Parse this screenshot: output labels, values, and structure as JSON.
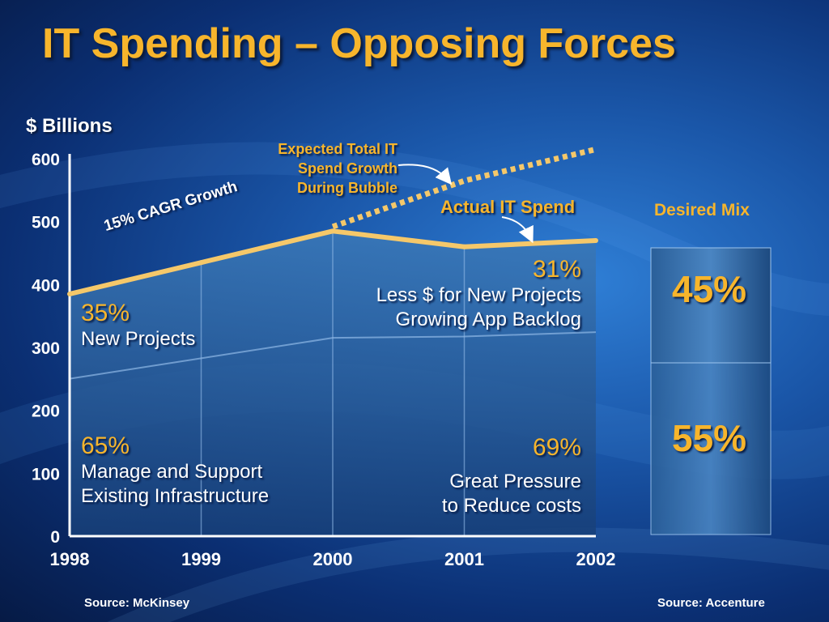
{
  "title": "IT Spending – Opposing Forces",
  "chart_data": {
    "type": "area",
    "ylabel": "$ Billions",
    "ylim": [
      0,
      600
    ],
    "yticks": [
      0,
      100,
      200,
      300,
      400,
      500,
      600
    ],
    "x": [
      "1998",
      "1999",
      "2000",
      "2001",
      "2002"
    ],
    "series": [
      {
        "name": "Actual IT Spend",
        "values": [
          385,
          435,
          485,
          460,
          470
        ]
      },
      {
        "name": "Expected Total IT Spend Growth During Bubble",
        "values": [
          null,
          null,
          492,
          565,
          615
        ]
      }
    ],
    "annotations": {
      "cagr": "15% CAGR Growth",
      "expected": [
        "Expected Total IT",
        "Spend Growth",
        "During Bubble"
      ],
      "actual": "Actual IT Spend"
    }
  },
  "notes": {
    "left_top_pct": "35%",
    "left_top_text": "New Projects",
    "left_bottom_pct": "65%",
    "left_bottom_text": [
      "Manage and Support",
      "Existing Infrastructure"
    ],
    "right_top_pct": "31%",
    "right_top_text": [
      "Less $ for New Projects",
      "Growing App Backlog"
    ],
    "right_bottom_pct": "69%",
    "right_bottom_text": [
      "Great Pressure",
      "to Reduce costs"
    ]
  },
  "desired_mix": {
    "label": "Desired Mix",
    "top": "45%",
    "bottom": "55%"
  },
  "sources": {
    "left": "Source: McKinsey",
    "right": "Source: Accenture"
  }
}
